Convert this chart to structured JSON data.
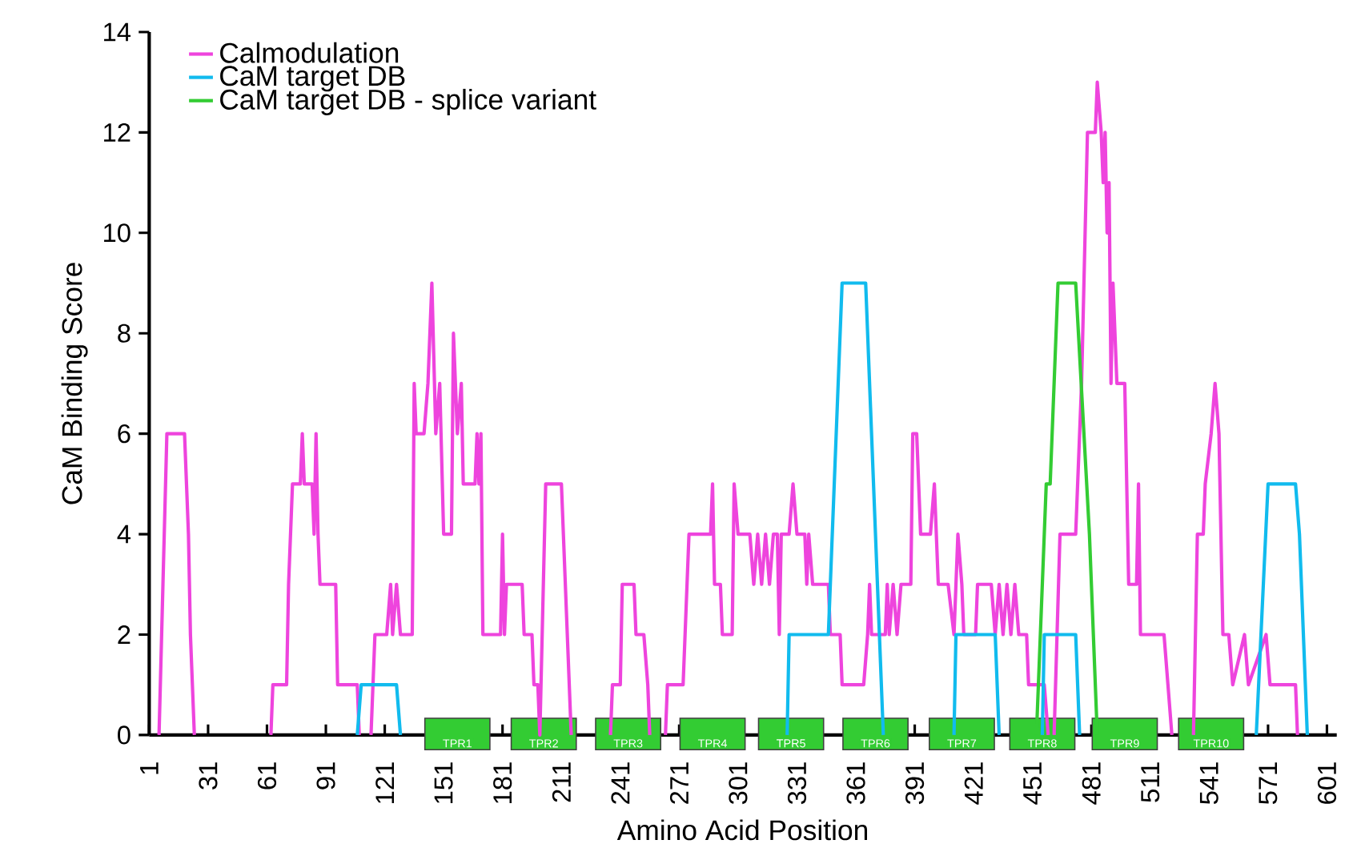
{
  "chart_data": {
    "type": "line",
    "xlabel": "Amino Acid Position",
    "ylabel": "CaM Binding Score",
    "xlim": [
      1,
      606
    ],
    "ylim": [
      0,
      14
    ],
    "xticks": [
      1,
      31,
      61,
      91,
      121,
      151,
      181,
      211,
      241,
      271,
      301,
      331,
      361,
      391,
      421,
      451,
      481,
      511,
      541,
      571,
      601
    ],
    "yticks": [
      0,
      2,
      4,
      6,
      8,
      10,
      12,
      14
    ],
    "legend": "top left",
    "series": [
      {
        "name": "Calmodulation",
        "color": "#ee44dd",
        "x": [
          6,
          8,
          10,
          19,
          21,
          22,
          24,
          40,
          63,
          64,
          71,
          72,
          74,
          78,
          79,
          80,
          84,
          85,
          86,
          87,
          88,
          96,
          97,
          107,
          108,
          111,
          114,
          116,
          122,
          124,
          125,
          127,
          129,
          135,
          136,
          137,
          141,
          143,
          145,
          147,
          149,
          151,
          155,
          156,
          158,
          160,
          161,
          167,
          168,
          169,
          170,
          171,
          180,
          181,
          182,
          183,
          191,
          192,
          196,
          197,
          199,
          200,
          203,
          211,
          212,
          214,
          216,
          226,
          236,
          237,
          241,
          242,
          248,
          249,
          253,
          255,
          256,
          260,
          264,
          265,
          273,
          274,
          276,
          287,
          288,
          289,
          292,
          293,
          298,
          299,
          301,
          307,
          309,
          311,
          313,
          315,
          317,
          319,
          321,
          322,
          323,
          327,
          329,
          331,
          335,
          336,
          337,
          339,
          347,
          348,
          353,
          354,
          365,
          367,
          368,
          369,
          376,
          377,
          378,
          380,
          382,
          384,
          389,
          390,
          392,
          394,
          399,
          401,
          403,
          408,
          411,
          412,
          413,
          415,
          416,
          422,
          423,
          430,
          432,
          434,
          436,
          438,
          440,
          442,
          444,
          448,
          449,
          457,
          459,
          460,
          462,
          465,
          473,
          476,
          479,
          483,
          484,
          486,
          487,
          488,
          489,
          490,
          491,
          492,
          494,
          498,
          500,
          504,
          505,
          506,
          518,
          520,
          522,
          528,
          533,
          535,
          538,
          539,
          542,
          544,
          546,
          548,
          551,
          553,
          559,
          561,
          570,
          572,
          585,
          586
        ],
        "values": [
          0,
          3,
          6,
          6,
          4,
          2,
          0,
          null,
          0,
          1,
          1,
          3,
          5,
          5,
          6,
          5,
          5,
          4,
          6,
          4,
          3,
          3,
          1,
          1,
          0,
          null,
          0,
          2,
          2,
          3,
          2,
          3,
          2,
          2,
          7,
          6,
          6,
          7,
          9,
          6,
          7,
          4,
          4,
          8,
          6,
          7,
          5,
          5,
          6,
          5,
          6,
          2,
          2,
          4,
          2,
          3,
          3,
          2,
          2,
          1,
          1,
          0,
          5,
          5,
          4,
          2,
          0,
          null,
          0,
          1,
          1,
          3,
          3,
          2,
          2,
          1,
          0,
          null,
          0,
          1,
          1,
          2,
          4,
          4,
          5,
          3,
          3,
          2,
          2,
          5,
          4,
          4,
          3,
          4,
          3,
          4,
          3,
          4,
          4,
          2,
          4,
          4,
          5,
          4,
          4,
          3,
          4,
          3,
          3,
          2,
          2,
          1,
          1,
          2,
          3,
          2,
          2,
          3,
          2,
          3,
          2,
          3,
          3,
          6,
          6,
          4,
          4,
          5,
          3,
          3,
          2,
          3,
          4,
          3,
          2,
          2,
          3,
          3,
          2,
          3,
          2,
          3,
          2,
          3,
          2,
          2,
          1,
          1,
          0,
          null,
          0,
          4,
          4,
          7,
          12,
          12,
          13,
          12,
          11,
          12,
          10,
          11,
          7,
          9,
          7,
          7,
          3,
          3,
          5,
          2,
          2,
          1,
          0,
          null,
          0,
          4,
          4,
          5,
          6,
          7,
          6,
          2,
          2,
          1,
          2,
          1,
          2,
          1,
          1,
          0
        ]
      },
      {
        "name": "CaM target DB",
        "color": "#11bbee",
        "x": [
          107,
          109,
          127,
          129,
          200,
          326,
          327,
          347,
          354,
          366,
          375,
          390,
          411,
          412,
          432,
          434,
          445,
          456,
          457,
          473,
          475,
          520,
          565,
          571,
          585,
          587,
          591
        ],
        "values": [
          0,
          1,
          1,
          0,
          null,
          0,
          2,
          2,
          9,
          9,
          0,
          null,
          0,
          2,
          2,
          0,
          null,
          0,
          2,
          2,
          0,
          null,
          0,
          5,
          5,
          4,
          0
        ]
      },
      {
        "name": "CaM target DB - splice variant",
        "color": "#33cc33",
        "x": [
          453,
          458,
          460,
          464,
          473,
          480,
          484
        ],
        "values": [
          0,
          5,
          5,
          9,
          9,
          4,
          0
        ]
      }
    ],
    "annotations": [
      {
        "text": "TPR1",
        "x": 158,
        "y": 0
      },
      {
        "text": "TPR2",
        "x": 202,
        "y": 0
      },
      {
        "text": "TPR3",
        "x": 245,
        "y": 0
      },
      {
        "text": "TPR4",
        "x": 288,
        "y": 0
      },
      {
        "text": "TPR5",
        "x": 328,
        "y": 0
      },
      {
        "text": "TPR6",
        "x": 371,
        "y": 0
      },
      {
        "text": "TPR7",
        "x": 415,
        "y": 0
      },
      {
        "text": "TPR8",
        "x": 456,
        "y": 0
      },
      {
        "text": "TPR9",
        "x": 498,
        "y": 0
      },
      {
        "text": "TPR10",
        "x": 542,
        "y": 0
      }
    ]
  }
}
